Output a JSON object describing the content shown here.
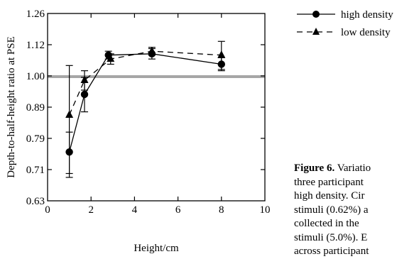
{
  "chart_data": {
    "type": "line",
    "xlabel": "Height/cm",
    "ylabel": "Depth-to-half-height ratio at PSE",
    "xlim": [
      0,
      10
    ],
    "ylim": [
      0.63,
      1.26
    ],
    "xticks": [
      0,
      2,
      4,
      6,
      8,
      10
    ],
    "yticks": [
      0.63,
      0.71,
      0.79,
      0.89,
      1.0,
      1.12,
      1.26
    ],
    "ytick_labels": [
      "0.63",
      "0.71",
      "0.79",
      "0.89",
      "1.00",
      "1.12",
      "1.26"
    ],
    "reference_line": 1.0,
    "legend_position": "top-right",
    "series": [
      {
        "name": "high density",
        "marker": "circle",
        "linestyle": "solid",
        "x": [
          1.0,
          1.7,
          2.8,
          4.8,
          8.0
        ],
        "y": [
          0.755,
          0.935,
          1.08,
          1.085,
          1.045
        ],
        "err": [
          0.055,
          0.06,
          0.015,
          0.02,
          0.025
        ]
      },
      {
        "name": "low density",
        "marker": "triangle",
        "linestyle": "dashed",
        "x": [
          1.0,
          1.7,
          2.9,
          4.8,
          8.0
        ],
        "y": [
          0.865,
          0.985,
          1.065,
          1.095,
          1.08
        ],
        "err": [
          0.175,
          0.035,
          0.02,
          0.015,
          0.055
        ]
      }
    ]
  },
  "legend": {
    "high_label": "high density",
    "low_label": "low density"
  },
  "caption": {
    "figure_label": "Figure 6.",
    "line1": " Variatio",
    "line2": "three participant",
    "line3": "high density. Cir",
    "line4": "stimuli (0.62%) a",
    "line5": "collected in the",
    "line6": "stimuli (5.0%). E",
    "line7": "across participant"
  },
  "colors": {
    "axis": "#000000",
    "reference_line": "#a6a6a6",
    "series": "#000000"
  }
}
